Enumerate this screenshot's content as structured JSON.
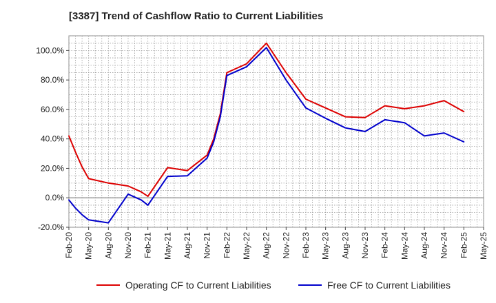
{
  "title": "[3387]  Trend of Cashflow Ratio to Current Liabilities",
  "chart_data": {
    "type": "line",
    "title": "[3387]  Trend of Cashflow Ratio to Current Liabilities",
    "xlabel": "",
    "ylabel": "",
    "ylim": [
      -20,
      110
    ],
    "y_ticks": [
      -20,
      0,
      20,
      40,
      60,
      80,
      100
    ],
    "y_tick_labels": [
      "-20.0%",
      "0.0%",
      "20.0%",
      "40.0%",
      "60.0%",
      "80.0%",
      "100.0%"
    ],
    "x_tick_labels": [
      "Feb-20",
      "May-20",
      "Aug-20",
      "Nov-20",
      "Feb-21",
      "May-21",
      "Aug-21",
      "Nov-21",
      "Feb-22",
      "May-22",
      "Aug-22",
      "Nov-22",
      "Feb-23",
      "May-23",
      "Aug-23",
      "Nov-23",
      "Feb-24",
      "May-24",
      "Aug-24",
      "Nov-24",
      "Feb-25",
      "May-25"
    ],
    "grid": true,
    "legend_position": "bottom",
    "series": [
      {
        "name": "Operating CF to Current Liabilities",
        "color": "#dd0000",
        "points": [
          [
            "Feb-20",
            42
          ],
          [
            "Mar-20",
            31
          ],
          [
            "Apr-20",
            21
          ],
          [
            "May-20",
            13
          ],
          [
            "Aug-20",
            10
          ],
          [
            "Nov-20",
            8
          ],
          [
            "Jan-21",
            4
          ],
          [
            "Feb-21",
            1
          ],
          [
            "May-21",
            20.5
          ],
          [
            "Aug-21",
            18.5
          ],
          [
            "Nov-21",
            29
          ],
          [
            "Dec-21",
            40
          ],
          [
            "Jan-22",
            57
          ],
          [
            "Feb-22",
            85
          ],
          [
            "May-22",
            91
          ],
          [
            "Aug-22",
            105
          ],
          [
            "Nov-22",
            85
          ],
          [
            "Feb-23",
            67
          ],
          [
            "May-23",
            61
          ],
          [
            "Aug-23",
            55
          ],
          [
            "Nov-23",
            54.5
          ],
          [
            "Feb-24",
            62.5
          ],
          [
            "May-24",
            60.5
          ],
          [
            "Aug-24",
            62.5
          ],
          [
            "Nov-24",
            66
          ],
          [
            "Feb-25",
            58.5
          ]
        ]
      },
      {
        "name": "Free CF to Current Liabilities",
        "color": "#0000cc",
        "points": [
          [
            "Feb-20",
            -1.5
          ],
          [
            "Mar-20",
            -7
          ],
          [
            "Apr-20",
            -11.5
          ],
          [
            "May-20",
            -15
          ],
          [
            "Aug-20",
            -17
          ],
          [
            "Nov-20",
            2.5
          ],
          [
            "Jan-21",
            -1.5
          ],
          [
            "Feb-21",
            -5
          ],
          [
            "May-21",
            14.5
          ],
          [
            "Aug-21",
            15
          ],
          [
            "Nov-21",
            27
          ],
          [
            "Dec-21",
            38
          ],
          [
            "Jan-22",
            55
          ],
          [
            "Feb-22",
            83
          ],
          [
            "May-22",
            89
          ],
          [
            "Aug-22",
            102
          ],
          [
            "Nov-22",
            80
          ],
          [
            "Feb-23",
            61
          ],
          [
            "May-23",
            54
          ],
          [
            "Aug-23",
            47.5
          ],
          [
            "Nov-23",
            45
          ],
          [
            "Feb-24",
            53
          ],
          [
            "May-24",
            51
          ],
          [
            "Aug-24",
            42
          ],
          [
            "Nov-24",
            44
          ],
          [
            "Feb-25",
            38
          ]
        ]
      }
    ]
  }
}
